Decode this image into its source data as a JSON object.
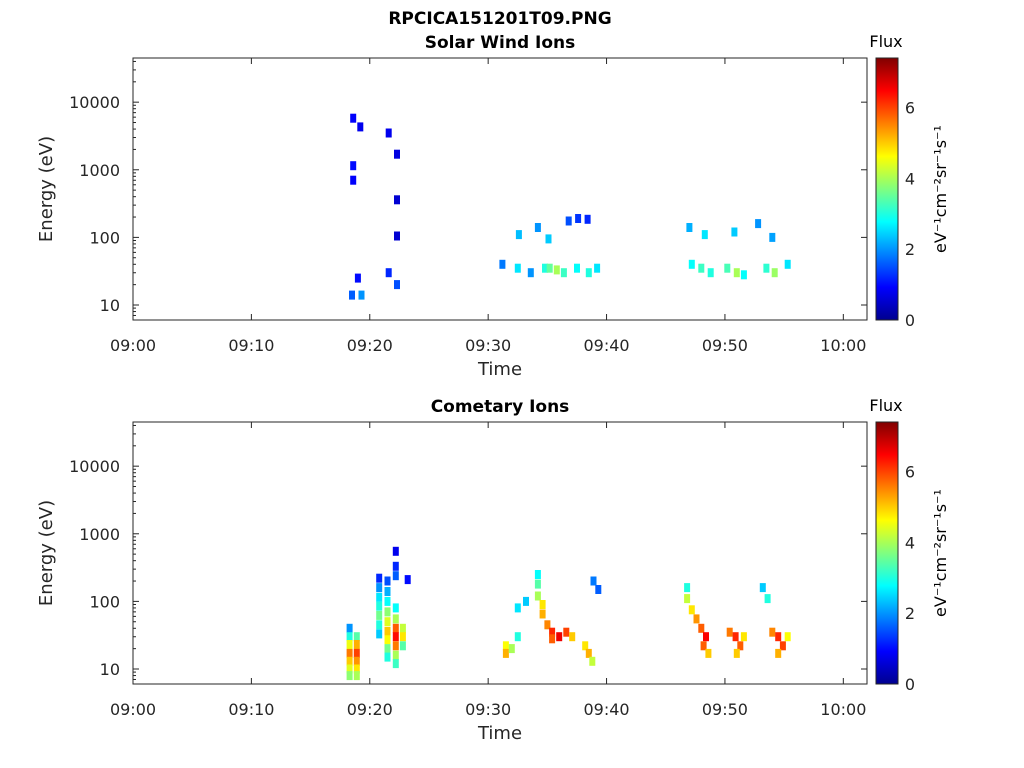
{
  "figure_title": "RPCICA151201T09.PNG",
  "colorbar": {
    "title": "Flux",
    "label": "eV⁻¹cm⁻²sr⁻¹s⁻¹",
    "ticks": [
      "0",
      "2",
      "4",
      "6"
    ],
    "range": [
      0,
      7.4
    ],
    "colormap": "jet"
  },
  "chart_data": [
    {
      "type": "heatmap",
      "title": "Solar Wind Ions",
      "xlabel": "Time",
      "ylabel": "Energy (eV)",
      "x_ticks": [
        "09:00",
        "09:10",
        "09:20",
        "09:30",
        "09:40",
        "09:50",
        "10:00"
      ],
      "y_ticks": [
        "10",
        "100",
        "1000",
        "10000"
      ],
      "y_scale": "log",
      "ylim": [
        6,
        45000
      ],
      "xlim_minutes": [
        0,
        62
      ],
      "value_range": [
        0,
        7.4
      ],
      "grid": false,
      "cells": [
        [
          18.5,
          14,
          1.6
        ],
        [
          19.3,
          14,
          2.0
        ],
        [
          19.0,
          25,
          1.0
        ],
        [
          18.6,
          5800,
          0.9
        ],
        [
          19.2,
          4300,
          0.8
        ],
        [
          18.6,
          1150,
          1.0
        ],
        [
          18.6,
          700,
          0.9
        ],
        [
          21.6,
          30,
          1.2
        ],
        [
          22.3,
          20,
          1.5
        ],
        [
          21.6,
          3500,
          0.8
        ],
        [
          22.3,
          1700,
          0.7
        ],
        [
          22.3,
          360,
          0.6
        ],
        [
          22.3,
          105,
          0.6
        ],
        [
          31.2,
          40,
          1.8
        ],
        [
          32.5,
          35,
          2.6
        ],
        [
          33.6,
          30,
          2.0
        ],
        [
          34.8,
          35,
          3.0
        ],
        [
          35.2,
          35,
          3.5
        ],
        [
          35.8,
          33,
          4.0
        ],
        [
          36.4,
          30,
          3.2
        ],
        [
          37.5,
          35,
          2.8
        ],
        [
          38.5,
          30,
          3.0
        ],
        [
          39.2,
          35,
          2.6
        ],
        [
          32.6,
          110,
          2.3
        ],
        [
          34.2,
          140,
          2.0
        ],
        [
          35.1,
          95,
          2.4
        ],
        [
          37.6,
          190,
          1.3
        ],
        [
          36.8,
          175,
          1.5
        ],
        [
          38.4,
          185,
          1.2
        ],
        [
          47.2,
          40,
          2.8
        ],
        [
          48.0,
          35,
          3.2
        ],
        [
          48.8,
          30,
          3.0
        ],
        [
          50.2,
          35,
          3.3
        ],
        [
          51.0,
          30,
          4.0
        ],
        [
          51.6,
          28,
          2.8
        ],
        [
          53.5,
          35,
          3.1
        ],
        [
          54.2,
          30,
          3.9
        ],
        [
          55.3,
          40,
          2.6
        ],
        [
          47.0,
          140,
          2.2
        ],
        [
          48.3,
          110,
          2.6
        ],
        [
          50.8,
          120,
          2.4
        ],
        [
          52.8,
          160,
          2.0
        ],
        [
          54.0,
          100,
          2.1
        ]
      ]
    },
    {
      "type": "heatmap",
      "title": "Cometary Ions",
      "xlabel": "Time",
      "ylabel": "Energy (eV)",
      "x_ticks": [
        "09:00",
        "09:10",
        "09:20",
        "09:30",
        "09:40",
        "09:50",
        "10:00"
      ],
      "y_ticks": [
        "10",
        "100",
        "1000",
        "10000"
      ],
      "y_scale": "log",
      "ylim": [
        6,
        45000
      ],
      "xlim_minutes": [
        0,
        62
      ],
      "value_range": [
        0,
        7.4
      ],
      "grid": false,
      "cells": [
        [
          18.3,
          40,
          2.0
        ],
        [
          18.3,
          30,
          3.0
        ],
        [
          18.3,
          23,
          4.5
        ],
        [
          18.3,
          17,
          5.6
        ],
        [
          18.3,
          13,
          5.0
        ],
        [
          18.3,
          10,
          4.4
        ],
        [
          18.3,
          8,
          3.8
        ],
        [
          18.9,
          30,
          3.4
        ],
        [
          18.9,
          23,
          5.2
        ],
        [
          18.9,
          17,
          6.0
        ],
        [
          18.9,
          13,
          5.4
        ],
        [
          18.9,
          10,
          4.8
        ],
        [
          18.9,
          8,
          4.0
        ],
        [
          20.8,
          220,
          1.2
        ],
        [
          20.8,
          160,
          2.0
        ],
        [
          20.8,
          115,
          2.6
        ],
        [
          20.8,
          85,
          3.0
        ],
        [
          20.8,
          62,
          3.6
        ],
        [
          20.8,
          45,
          3.0
        ],
        [
          20.8,
          33,
          2.4
        ],
        [
          21.5,
          200,
          1.5
        ],
        [
          21.5,
          140,
          2.2
        ],
        [
          21.5,
          100,
          2.8
        ],
        [
          21.5,
          70,
          3.8
        ],
        [
          21.5,
          50,
          4.4
        ],
        [
          21.5,
          36,
          5.0
        ],
        [
          21.5,
          27,
          4.6
        ],
        [
          21.5,
          20,
          3.6
        ],
        [
          21.5,
          15,
          3.0
        ],
        [
          22.2,
          330,
          1.2
        ],
        [
          22.2,
          240,
          1.6
        ],
        [
          22.2,
          80,
          2.8
        ],
        [
          22.2,
          55,
          4.0
        ],
        [
          22.2,
          40,
          5.8
        ],
        [
          22.2,
          30,
          6.4
        ],
        [
          22.2,
          22,
          5.6
        ],
        [
          22.2,
          16,
          4.0
        ],
        [
          22.2,
          12,
          3.2
        ],
        [
          22.8,
          40,
          4.2
        ],
        [
          22.8,
          30,
          4.8
        ],
        [
          22.8,
          22,
          3.4
        ],
        [
          22.2,
          550,
          0.8
        ],
        [
          23.2,
          210,
          1.0
        ],
        [
          31.5,
          22,
          4.6
        ],
        [
          31.5,
          17,
          5.2
        ],
        [
          32.0,
          20,
          4.0
        ],
        [
          32.5,
          30,
          3.0
        ],
        [
          32.5,
          80,
          2.6
        ],
        [
          33.2,
          100,
          2.4
        ],
        [
          34.2,
          250,
          2.8
        ],
        [
          34.2,
          180,
          3.4
        ],
        [
          34.2,
          120,
          4.0
        ],
        [
          34.6,
          90,
          4.8
        ],
        [
          34.6,
          65,
          5.2
        ],
        [
          35.0,
          45,
          5.5
        ],
        [
          35.4,
          35,
          6.2
        ],
        [
          36.0,
          30,
          6.6
        ],
        [
          36.6,
          35,
          6.0
        ],
        [
          37.1,
          30,
          5.0
        ],
        [
          35.4,
          28,
          5.8
        ],
        [
          38.2,
          22,
          4.8
        ],
        [
          38.5,
          17,
          5.2
        ],
        [
          38.8,
          13,
          4.2
        ],
        [
          38.9,
          200,
          1.8
        ],
        [
          39.3,
          150,
          1.6
        ],
        [
          46.8,
          160,
          3.0
        ],
        [
          46.8,
          110,
          4.2
        ],
        [
          47.2,
          75,
          4.8
        ],
        [
          47.6,
          55,
          5.4
        ],
        [
          48.0,
          40,
          5.8
        ],
        [
          48.4,
          30,
          6.5
        ],
        [
          48.2,
          22,
          5.8
        ],
        [
          48.6,
          17,
          5.0
        ],
        [
          50.4,
          35,
          5.6
        ],
        [
          50.9,
          30,
          6.2
        ],
        [
          51.3,
          22,
          5.8
        ],
        [
          51.0,
          17,
          5.0
        ],
        [
          51.6,
          30,
          4.8
        ],
        [
          53.2,
          160,
          2.4
        ],
        [
          53.6,
          110,
          3.0
        ],
        [
          54.0,
          35,
          5.5
        ],
        [
          54.5,
          30,
          6.2
        ],
        [
          54.9,
          22,
          6.0
        ],
        [
          54.5,
          17,
          5.2
        ],
        [
          55.3,
          30,
          4.6
        ]
      ]
    }
  ]
}
